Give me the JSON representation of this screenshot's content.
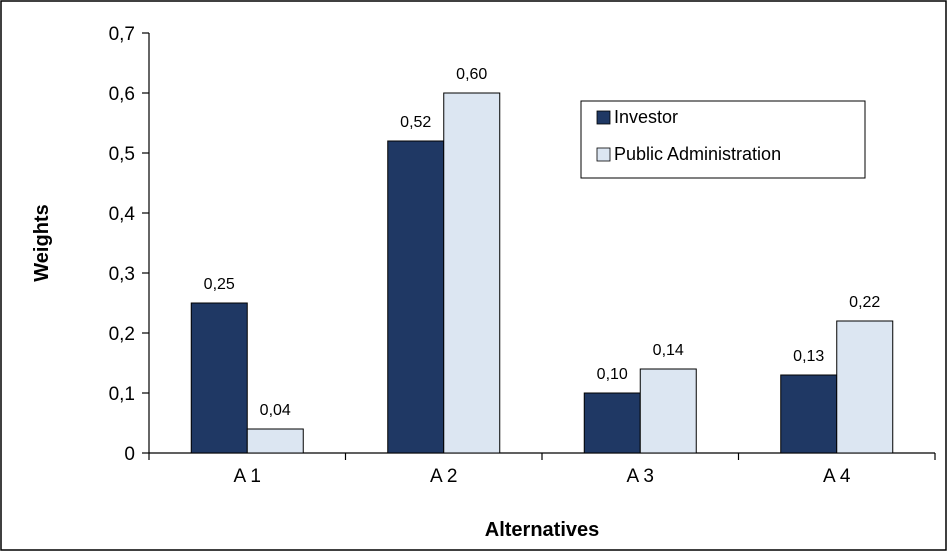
{
  "chart_data": {
    "type": "bar",
    "title": "",
    "xlabel": "Alternatives",
    "ylabel": "Weights",
    "categories": [
      "A 1",
      "A 2",
      "A 3",
      "A 4"
    ],
    "ylim": [
      0,
      0.7
    ],
    "yticks": [
      0,
      0.1,
      0.2,
      0.3,
      0.4,
      0.5,
      0.6,
      0.7
    ],
    "ytick_labels": [
      "0",
      "0,1",
      "0,2",
      "0,3",
      "0,4",
      "0,5",
      "0,6",
      "0,7"
    ],
    "grid": false,
    "legend_position": "top-right",
    "series": [
      {
        "name": "Investor",
        "color": "#1f3864",
        "values": [
          0.25,
          0.52,
          0.1,
          0.13
        ],
        "labels": [
          "0,25",
          "0,52",
          "0,10",
          "0,13"
        ]
      },
      {
        "name": "Public Administration",
        "color": "#dce6f2",
        "values": [
          0.04,
          0.6,
          0.14,
          0.22
        ],
        "labels": [
          "0,04",
          "0,60",
          "0,14",
          "0,22"
        ]
      }
    ]
  }
}
